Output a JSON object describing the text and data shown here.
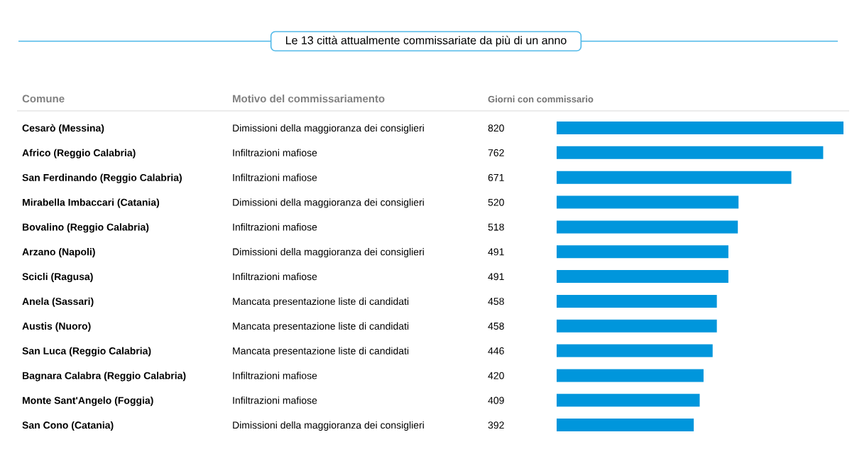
{
  "chart_data": {
    "type": "bar",
    "orientation": "horizontal",
    "title": "Le 13 città attualmente commissariate da più di un anno",
    "ylabel": "Comune",
    "xlabel": "Giorni con commissario",
    "categories": [
      "Cesarò (Messina)",
      "Africo (Reggio Calabria)",
      "San Ferdinando (Reggio Calabria)",
      "Mirabella Imbaccari (Catania)",
      "Bovalino (Reggio Calabria)",
      "Arzano (Napoli)",
      "Scicli (Ragusa)",
      "Anela (Sassari)",
      "Austis (Nuoro)",
      "San Luca (Reggio Calabria)",
      "Bagnara Calabra (Reggio Calabria)",
      "Monte Sant'Angelo (Foggia)",
      "San Cono (Catania)"
    ],
    "values": [
      820,
      762,
      671,
      520,
      518,
      491,
      491,
      458,
      458,
      446,
      420,
      409,
      392
    ],
    "color": "#0096dc",
    "xlim": [
      0,
      820
    ],
    "data_labels": true,
    "annotations": [
      "Motivo del commissariamento",
      "Dimissioni della maggioranza dei consiglieri",
      "Infiltrazioni mafiose",
      "Infiltrazioni mafiose",
      "Dimissioni della maggioranza dei consiglieri",
      "Infiltrazioni mafiose",
      "Dimissioni della maggioranza dei consiglieri",
      "Infiltrazioni mafiose",
      "Mancata presentazione liste di candidati",
      "Mancata presentazione liste di candidati",
      "Mancata presentazione liste di candidati",
      "Infiltrazioni mafiose",
      "Infiltrazioni mafiose",
      "Dimissioni della maggioranza dei consiglieri"
    ]
  }
}
